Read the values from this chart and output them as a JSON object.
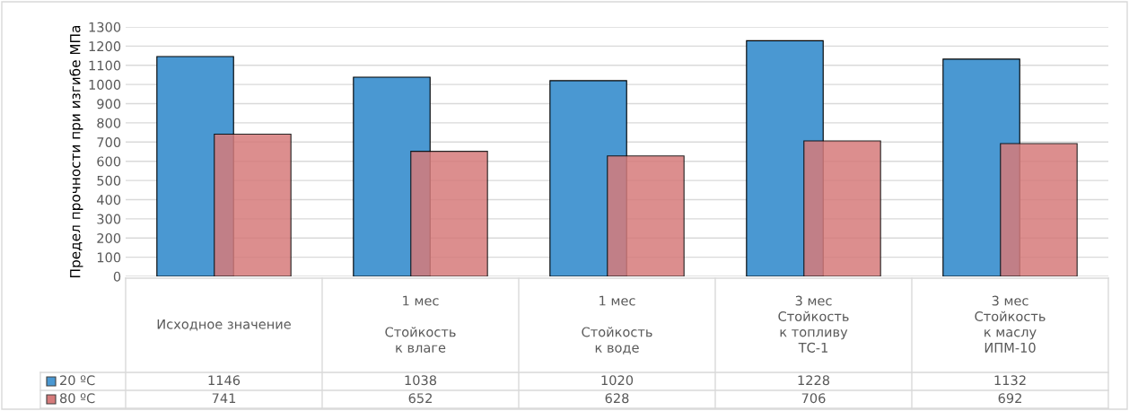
{
  "chart_data": {
    "type": "bar",
    "ylabel": "Предел прочности при изгибе МПа",
    "categories": [
      "Исходное значение",
      "1 мес\n\nСтойкость\nк влаге",
      "1 мес\n\nСтойкость\nк воде",
      "3 мес\nСтойкость\nк топливу\nТС-1",
      "3 мес\nСтойкость\nк маслу\nИПМ-10"
    ],
    "series": [
      {
        "name": "20 ºC",
        "color": "#4a98d2",
        "values": [
          1146,
          1038,
          1020,
          1228,
          1132
        ]
      },
      {
        "name": "80 ºC",
        "color": "#d67b7b",
        "values": [
          741,
          652,
          628,
          706,
          692
        ]
      }
    ],
    "ylim": [
      0,
      1300
    ],
    "yticks": [
      0,
      100,
      200,
      300,
      400,
      500,
      600,
      700,
      800,
      900,
      1000,
      1100,
      1200,
      1300
    ],
    "grid": "y",
    "legend": "bottom",
    "data_labels": true
  }
}
